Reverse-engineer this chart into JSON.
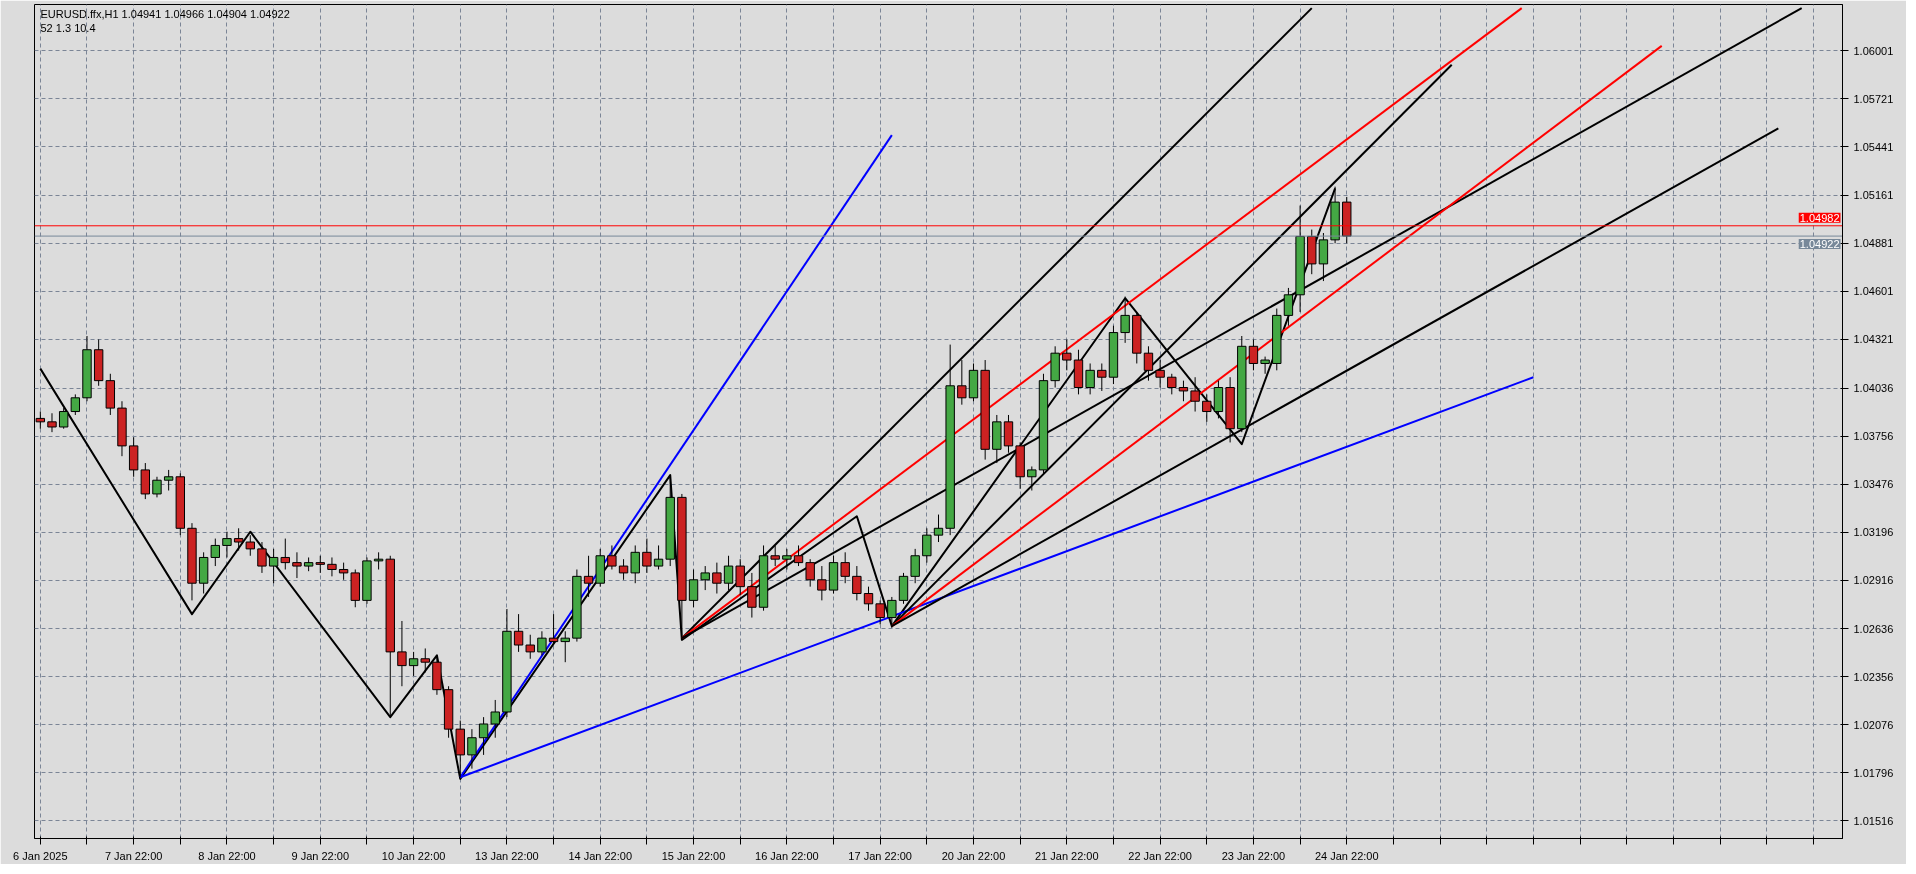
{
  "chart_data": {
    "type": "candlestick",
    "title": "EURUSD.ffx,H1  1.04941 1.04966 1.04904 1.04922",
    "subtitle": "52  1.3  10.4",
    "categories": [
      "6 Jan 2025",
      null,
      null,
      null,
      null,
      null,
      null,
      null,
      "7 Jan 22:00",
      null,
      null,
      null,
      null,
      null,
      null,
      null,
      "8 Jan 22:00",
      null,
      null,
      null,
      null,
      null,
      null,
      null,
      "9 Jan 22:00",
      null,
      null,
      null,
      null,
      null,
      null,
      null,
      "10 Jan 22:00",
      null,
      null,
      null,
      null,
      null,
      null,
      null,
      "13 Jan 22:00",
      null,
      null,
      null,
      null,
      null,
      null,
      null,
      "14 Jan 22:00",
      null,
      null,
      null,
      null,
      null,
      null,
      null,
      "15 Jan 22:00",
      null,
      null,
      null,
      null,
      null,
      null,
      null,
      "16 Jan 22:00",
      null,
      null,
      null,
      null,
      null,
      null,
      null,
      "17 Jan 22:00",
      null,
      null,
      null,
      null,
      null,
      null,
      null,
      "20 Jan 22:00",
      null,
      null,
      null,
      null,
      null,
      null,
      null,
      "21 Jan 22:00",
      null,
      null,
      null,
      null,
      null,
      null,
      null,
      "22 Jan 22:00",
      null,
      null,
      null,
      null,
      null,
      null,
      null,
      "23 Jan 22:00",
      null,
      null,
      null,
      null,
      null,
      null,
      null,
      "24 Jan 22:00",
      null,
      null,
      null,
      null,
      null,
      null,
      null,
      null,
      null,
      null,
      null,
      null,
      null,
      null,
      null,
      null,
      null,
      null,
      null,
      null,
      null,
      null,
      null,
      null,
      null,
      null,
      null,
      null,
      null,
      null,
      null,
      null,
      null,
      null,
      null,
      null,
      null,
      null,
      null,
      null,
      null,
      null
    ],
    "colors": [
      "#cc2222",
      "#cc2222",
      "#44a844",
      "#44a844",
      "#44a844",
      "#cc2222",
      "#cc2222",
      "#cc2222",
      "#cc2222",
      "#cc2222",
      "#44a844",
      "#44a844",
      "#cc2222",
      "#cc2222",
      "#44a844",
      "#44a844",
      "#44a844",
      "#cc2222",
      "#cc2222",
      "#cc2222",
      "#44a844",
      "#cc2222",
      "#cc2222",
      "#44a844",
      "#cc2222",
      "#cc2222",
      "#cc2222",
      "#cc2222",
      "#44a844",
      "#44a844",
      "#cc2222",
      "#cc2222",
      "#44a844",
      "#cc2222",
      "#cc2222",
      "#cc2222",
      "#cc2222",
      "#44a844",
      "#44a844",
      "#44a844",
      "#44a844",
      "#cc2222",
      "#cc2222",
      "#44a844",
      "#cc2222",
      "#44a844",
      "#44a844",
      "#cc2222",
      "#44a844",
      "#cc2222",
      "#cc2222",
      "#44a844",
      "#cc2222",
      "#44a844",
      "#44a844",
      "#cc2222",
      "#44a844",
      "#44a844",
      "#cc2222",
      "#44a844",
      "#cc2222",
      "#cc2222",
      "#44a844",
      "#cc2222",
      "#44a844",
      "#cc2222",
      "#cc2222",
      "#cc2222",
      "#44a844",
      "#cc2222",
      "#cc2222",
      "#cc2222",
      "#cc2222",
      "#44a844",
      "#44a844",
      "#44a844",
      "#44a844",
      "#44a844",
      "#44a844",
      "#cc2222",
      "#44a844",
      "#cc2222",
      "#44a844",
      "#cc2222",
      "#cc2222",
      "#44a844",
      "#44a844",
      "#44a844",
      "#cc2222",
      "#cc2222",
      "#44a844",
      "#cc2222",
      "#44a844",
      "#44a844",
      "#cc2222",
      "#cc2222",
      "#cc2222",
      "#cc2222",
      "#cc2222",
      "#cc2222",
      "#cc2222",
      "#44a844",
      "#cc2222",
      "#44a844",
      "#cc2222",
      "#44a844",
      "#44a844",
      "#44a844",
      "#44a844",
      "#cc2222",
      "#44a844",
      "#44a844",
      "#cc2222",
      null,
      null,
      null,
      null,
      null,
      null,
      null,
      null,
      null,
      null,
      null,
      null,
      null,
      null,
      null,
      null,
      null,
      null,
      null,
      null,
      null,
      null,
      null,
      null,
      null,
      null,
      null,
      null,
      null,
      null,
      null,
      null,
      null,
      null,
      null,
      null,
      null,
      null,
      null,
      null,
      null,
      null
    ],
    "ohlc": [
      [
        1.0386,
        1.039,
        1.038,
        1.0384
      ],
      [
        1.0384,
        1.0389,
        1.0378,
        1.0381
      ],
      [
        1.0381,
        1.0392,
        1.038,
        1.039
      ],
      [
        1.039,
        1.04,
        1.0388,
        1.0398
      ],
      [
        1.0398,
        1.0434,
        1.0396,
        1.0426
      ],
      [
        1.0426,
        1.0432,
        1.0405,
        1.0408
      ],
      [
        1.0408,
        1.0412,
        1.0388,
        1.0392
      ],
      [
        1.0392,
        1.0396,
        1.0364,
        1.037
      ],
      [
        1.037,
        1.0375,
        1.0352,
        1.0356
      ],
      [
        1.0356,
        1.036,
        1.0339,
        1.0342
      ],
      [
        1.0342,
        1.0352,
        1.034,
        1.035
      ],
      [
        1.035,
        1.0356,
        1.0344,
        1.0352
      ],
      [
        1.0352,
        1.0354,
        1.0318,
        1.0322
      ],
      [
        1.0322,
        1.0325,
        1.028,
        1.029
      ],
      [
        1.029,
        1.0308,
        1.0284,
        1.0305
      ],
      [
        1.0305,
        1.0316,
        1.03,
        1.0312
      ],
      [
        1.0312,
        1.032,
        1.0305,
        1.0316
      ],
      [
        1.0316,
        1.0322,
        1.0309,
        1.0314
      ],
      [
        1.0314,
        1.0318,
        1.0306,
        1.031
      ],
      [
        1.031,
        1.0314,
        1.0296,
        1.03
      ],
      [
        1.03,
        1.031,
        1.029,
        1.0305
      ],
      [
        1.0305,
        1.0316,
        1.0298,
        1.0302
      ],
      [
        1.0302,
        1.0308,
        1.0293,
        1.03
      ],
      [
        1.03,
        1.0305,
        1.0297,
        1.0302
      ],
      [
        1.0302,
        1.0306,
        1.0296,
        1.0301
      ],
      [
        1.0301,
        1.0305,
        1.0294,
        1.0298
      ],
      [
        1.0298,
        1.0302,
        1.0292,
        1.0296
      ],
      [
        1.0296,
        1.0298,
        1.0276,
        1.028
      ],
      [
        1.028,
        1.0305,
        1.0278,
        1.0303
      ],
      [
        1.0303,
        1.0308,
        1.0298,
        1.0304
      ],
      [
        1.0304,
        1.0306,
        1.0212,
        1.025
      ],
      [
        1.025,
        1.0268,
        1.023,
        1.0242
      ],
      [
        1.0242,
        1.025,
        1.0236,
        1.0246
      ],
      [
        1.0246,
        1.0252,
        1.0238,
        1.0244
      ],
      [
        1.0244,
        1.0248,
        1.0225,
        1.0228
      ],
      [
        1.0228,
        1.023,
        1.02,
        1.0205
      ],
      [
        1.0205,
        1.021,
        1.0177,
        1.019
      ],
      [
        1.019,
        1.0205,
        1.0182,
        1.02
      ],
      [
        1.02,
        1.0212,
        1.019,
        1.0208
      ],
      [
        1.0208,
        1.0222,
        1.02,
        1.0215
      ],
      [
        1.0215,
        1.0275,
        1.0212,
        1.0262
      ],
      [
        1.0262,
        1.0272,
        1.025,
        1.0254
      ],
      [
        1.0254,
        1.026,
        1.0246,
        1.025
      ],
      [
        1.025,
        1.0262,
        1.0248,
        1.0258
      ],
      [
        1.0258,
        1.0272,
        1.0255,
        1.0256
      ],
      [
        1.0256,
        1.0262,
        1.0244,
        1.0258
      ],
      [
        1.0258,
        1.0298,
        1.0256,
        1.0294
      ],
      [
        1.0294,
        1.0306,
        1.0282,
        1.029
      ],
      [
        1.029,
        1.031,
        1.0288,
        1.0306
      ],
      [
        1.0306,
        1.0312,
        1.0298,
        1.03
      ],
      [
        1.03,
        1.0304,
        1.0292,
        1.0296
      ],
      [
        1.0296,
        1.0312,
        1.029,
        1.0308
      ],
      [
        1.0308,
        1.0316,
        1.0296,
        1.03
      ],
      [
        1.03,
        1.0312,
        1.0298,
        1.0304
      ],
      [
        1.0304,
        1.0353,
        1.03,
        1.034
      ],
      [
        1.034,
        1.0342,
        1.0257,
        1.028
      ],
      [
        1.028,
        1.0298,
        1.0276,
        1.0292
      ],
      [
        1.0292,
        1.03,
        1.0286,
        1.0296
      ],
      [
        1.0296,
        1.0302,
        1.0284,
        1.029
      ],
      [
        1.029,
        1.0306,
        1.0286,
        1.03
      ],
      [
        1.03,
        1.0304,
        1.0283,
        1.0288
      ],
      [
        1.0288,
        1.0296,
        1.027,
        1.0276
      ],
      [
        1.0276,
        1.0312,
        1.0274,
        1.0306
      ],
      [
        1.0306,
        1.0312,
        1.03,
        1.0304
      ],
      [
        1.0304,
        1.031,
        1.0298,
        1.0306
      ],
      [
        1.0306,
        1.0312,
        1.03,
        1.0302
      ],
      [
        1.0302,
        1.0304,
        1.0288,
        1.0292
      ],
      [
        1.0292,
        1.03,
        1.028,
        1.0286
      ],
      [
        1.0286,
        1.0306,
        1.0284,
        1.0302
      ],
      [
        1.0302,
        1.0308,
        1.029,
        1.0294
      ],
      [
        1.0294,
        1.03,
        1.028,
        1.0284
      ],
      [
        1.0284,
        1.0288,
        1.0274,
        1.0278
      ],
      [
        1.0278,
        1.028,
        1.0266,
        1.027
      ],
      [
        1.027,
        1.0282,
        1.0264,
        1.028
      ],
      [
        1.028,
        1.0296,
        1.0278,
        1.0294
      ],
      [
        1.0294,
        1.031,
        1.029,
        1.0306
      ],
      [
        1.0306,
        1.0322,
        1.0302,
        1.0318
      ],
      [
        1.0318,
        1.033,
        1.0314,
        1.0322
      ],
      [
        1.0322,
        1.0429,
        1.0318,
        1.0405
      ],
      [
        1.0405,
        1.042,
        1.0394,
        1.0398
      ],
      [
        1.0398,
        1.0418,
        1.0396,
        1.0414
      ],
      [
        1.0414,
        1.042,
        1.0362,
        1.0368
      ],
      [
        1.0368,
        1.0388,
        1.036,
        1.0384
      ],
      [
        1.0384,
        1.0388,
        1.0366,
        1.037
      ],
      [
        1.037,
        1.0372,
        1.0345,
        1.0352
      ],
      [
        1.0352,
        1.0358,
        1.0344,
        1.0356
      ],
      [
        1.0356,
        1.0412,
        1.0354,
        1.0408
      ],
      [
        1.0408,
        1.0428,
        1.0404,
        1.0424
      ],
      [
        1.0424,
        1.0432,
        1.0414,
        1.042
      ],
      [
        1.042,
        1.0426,
        1.04,
        1.0404
      ],
      [
        1.0404,
        1.0418,
        1.04,
        1.0414
      ],
      [
        1.0414,
        1.0418,
        1.0402,
        1.041
      ],
      [
        1.041,
        1.044,
        1.0406,
        1.0436
      ],
      [
        1.0436,
        1.0457,
        1.043,
        1.0446
      ],
      [
        1.0446,
        1.0448,
        1.0418,
        1.0424
      ],
      [
        1.0424,
        1.0428,
        1.0408,
        1.0414
      ],
      [
        1.0414,
        1.042,
        1.0404,
        1.041
      ],
      [
        1.041,
        1.0412,
        1.04,
        1.0404
      ],
      [
        1.0404,
        1.0408,
        1.0396,
        1.0402
      ],
      [
        1.0402,
        1.041,
        1.039,
        1.0396
      ],
      [
        1.0396,
        1.04,
        1.0384,
        1.039
      ],
      [
        1.039,
        1.0408,
        1.0386,
        1.0404
      ],
      [
        1.0404,
        1.041,
        1.0372,
        1.038
      ],
      [
        1.038,
        1.0434,
        1.0378,
        1.0428
      ],
      [
        1.0428,
        1.0432,
        1.0414,
        1.0418
      ],
      [
        1.0418,
        1.0422,
        1.0412,
        1.042
      ],
      [
        1.0418,
        1.045,
        1.0414,
        1.0446
      ],
      [
        1.0446,
        1.0462,
        1.044,
        1.0458
      ],
      [
        1.0458,
        1.051,
        1.0448,
        1.0492
      ],
      [
        1.0492,
        1.0496,
        1.047,
        1.0476
      ],
      [
        1.0476,
        1.0494,
        1.0466,
        1.049
      ],
      [
        1.049,
        1.0521,
        1.0488,
        1.0512
      ],
      [
        1.0512,
        1.0515,
        1.0488,
        1.04922
      ],
      null,
      null,
      null,
      null,
      null,
      null,
      null,
      null,
      null,
      null,
      null,
      null,
      null,
      null,
      null,
      null,
      null,
      null,
      null,
      null,
      null,
      null,
      null,
      null,
      null,
      null,
      null,
      null,
      null,
      null,
      null,
      null,
      null,
      null,
      null,
      null,
      null,
      null,
      null,
      null,
      null,
      null
    ],
    "series": [
      {
        "type": "line",
        "color": "#000000",
        "values": [
          1.0415,
          null,
          null,
          null,
          null,
          null,
          null,
          null,
          null,
          null,
          null,
          null,
          null,
          1.0272,
          null,
          null,
          null,
          null,
          1.032,
          null,
          null,
          null,
          null,
          null,
          null,
          null,
          null,
          null,
          null,
          null,
          1.0212,
          null,
          null,
          null,
          1.0248,
          null,
          1.0176,
          null,
          null,
          null,
          null,
          null,
          null,
          null,
          null,
          null,
          null,
          null,
          null,
          null,
          null,
          null,
          null,
          null,
          1.0353,
          1.0257,
          null,
          null,
          null,
          null,
          null,
          null,
          null,
          null,
          null,
          null,
          null,
          null,
          null,
          null,
          1.0329,
          null,
          null,
          1.0265,
          null,
          null,
          null,
          null,
          null,
          null,
          null,
          null,
          null,
          null,
          null,
          null,
          null,
          null,
          null,
          null,
          null,
          null,
          null,
          1.0456,
          null,
          null,
          null,
          null,
          null,
          null,
          null,
          null,
          null,
          1.0371,
          null,
          null,
          null,
          null,
          null,
          null,
          null,
          1.052,
          null,
          null,
          null,
          null,
          null,
          null,
          null,
          null,
          null,
          null,
          null,
          null,
          null,
          null,
          null,
          null,
          null,
          null,
          null,
          null,
          null,
          null,
          null,
          null,
          null,
          null,
          null,
          null,
          null,
          null,
          null,
          null,
          null,
          null,
          null,
          null,
          null,
          null,
          null,
          null,
          null,
          null,
          null
        ]
      },
      {
        "type": "line",
        "color": "#0000ff",
        "values": [
          null,
          null,
          null,
          null,
          null,
          null,
          null,
          null,
          null,
          null,
          null,
          null,
          null,
          null,
          null,
          null,
          null,
          null,
          null,
          null,
          null,
          null,
          null,
          null,
          null,
          null,
          null,
          null,
          null,
          null,
          null,
          null,
          null,
          null,
          null,
          null,
          1.0177,
          null,
          null,
          null,
          null,
          null,
          null,
          null,
          null,
          null,
          null,
          null,
          null,
          null,
          null,
          null,
          null,
          null,
          null,
          null,
          null,
          null,
          null,
          null,
          null,
          null,
          null,
          null,
          null,
          null,
          null,
          null,
          null,
          null,
          null,
          null,
          null,
          1.0551,
          null,
          null,
          null,
          null,
          null,
          null,
          null,
          null,
          null,
          null,
          null,
          null,
          null,
          null,
          null,
          null,
          null,
          null,
          null,
          null,
          null,
          null,
          null,
          null,
          null,
          null,
          null,
          null,
          null,
          null,
          null,
          null,
          null,
          null,
          null,
          null,
          null,
          null,
          null,
          null,
          null,
          null,
          null,
          null,
          null,
          null,
          null,
          null,
          null,
          null,
          null,
          null,
          null,
          null,
          null,
          null,
          null,
          null,
          null,
          null,
          null,
          null,
          null,
          null,
          null,
          null,
          null,
          null,
          null,
          null,
          null,
          null,
          null,
          null,
          null,
          null,
          null,
          null,
          null,
          null,
          null
        ]
      },
      {
        "type": "line",
        "color": "#0000ff",
        "values": [
          null,
          null,
          null,
          null,
          null,
          null,
          null,
          null,
          null,
          null,
          null,
          null,
          null,
          null,
          null,
          null,
          null,
          null,
          null,
          null,
          null,
          null,
          null,
          null,
          null,
          null,
          null,
          null,
          null,
          null,
          null,
          null,
          null,
          null,
          null,
          null,
          1.0177,
          null,
          null,
          null,
          null,
          null,
          null,
          null,
          null,
          null,
          null,
          null,
          null,
          null,
          null,
          null,
          null,
          null,
          null,
          null,
          null,
          null,
          null,
          null,
          null,
          null,
          null,
          null,
          null,
          null,
          null,
          null,
          null,
          null,
          null,
          null,
          null,
          null,
          null,
          null,
          null,
          null,
          null,
          null,
          null,
          null,
          null,
          null,
          null,
          null,
          null,
          null,
          null,
          null,
          null,
          null,
          null,
          null,
          null,
          null,
          null,
          null,
          null,
          null,
          null,
          null,
          null,
          null,
          null,
          null,
          null,
          null,
          null,
          null,
          null,
          null,
          null,
          null,
          null,
          null,
          null,
          null,
          null,
          null,
          null,
          null,
          null,
          null,
          null,
          null,
          null,
          null,
          1.041,
          null,
          null,
          null,
          null,
          null,
          null,
          null,
          null,
          null,
          null,
          null,
          null,
          null,
          null,
          null,
          null,
          null,
          null,
          null,
          null,
          null,
          null,
          null,
          null,
          null,
          null
        ]
      },
      {
        "type": "line",
        "color": "#000000",
        "values": [
          null,
          null,
          null,
          null,
          null,
          null,
          null,
          null,
          null,
          null,
          null,
          null,
          null,
          null,
          null,
          null,
          null,
          null,
          null,
          null,
          null,
          null,
          null,
          null,
          null,
          null,
          null,
          null,
          null,
          null,
          null,
          null,
          null,
          null,
          null,
          null,
          null,
          null,
          null,
          null,
          null,
          null,
          null,
          null,
          null,
          null,
          null,
          null,
          null,
          null,
          null,
          null,
          null,
          null,
          null,
          1.0258,
          null,
          null,
          null,
          null,
          null,
          null,
          null,
          null,
          null,
          null,
          null,
          null,
          null,
          null,
          null,
          null,
          null,
          null,
          null,
          null,
          null,
          null,
          null,
          null,
          null,
          null,
          null,
          null,
          null,
          null,
          null,
          null,
          null,
          null,
          null,
          null,
          null,
          null,
          null,
          null,
          null,
          null,
          null,
          null,
          null,
          null,
          null,
          null,
          null,
          null,
          null,
          null,
          null,
          1.0625,
          null,
          null,
          null,
          null,
          null,
          null,
          null,
          null,
          null,
          null,
          null,
          null,
          null,
          null,
          null,
          null,
          null,
          null,
          null,
          null,
          null,
          null,
          null,
          null,
          null,
          null,
          null,
          null,
          null,
          null,
          null,
          null,
          null,
          null,
          null,
          null,
          null,
          null,
          null,
          null,
          null,
          null,
          null,
          null,
          null
        ]
      },
      {
        "type": "line",
        "color": "#ff0000",
        "values": [
          null,
          null,
          null,
          null,
          null,
          null,
          null,
          null,
          null,
          null,
          null,
          null,
          null,
          null,
          null,
          null,
          null,
          null,
          null,
          null,
          null,
          null,
          null,
          null,
          null,
          null,
          null,
          null,
          null,
          null,
          null,
          null,
          null,
          null,
          null,
          null,
          null,
          null,
          null,
          null,
          null,
          null,
          null,
          null,
          null,
          null,
          null,
          null,
          null,
          null,
          null,
          null,
          null,
          null,
          null,
          1.0258,
          null,
          null,
          null,
          null,
          null,
          null,
          null,
          null,
          null,
          null,
          null,
          null,
          null,
          null,
          null,
          null,
          null,
          null,
          null,
          null,
          null,
          null,
          null,
          null,
          null,
          null,
          null,
          null,
          null,
          null,
          null,
          null,
          null,
          null,
          null,
          null,
          null,
          null,
          null,
          null,
          null,
          null,
          null,
          null,
          null,
          null,
          null,
          null,
          null,
          null,
          null,
          null,
          null,
          null,
          null,
          null,
          null,
          null,
          null,
          null,
          null,
          null,
          null,
          null,
          null,
          null,
          null,
          null,
          null,
          null,
          null,
          1.0625,
          null,
          null,
          null,
          null,
          null,
          null,
          null,
          null,
          null,
          null,
          null,
          null,
          null,
          null,
          null,
          null,
          null,
          null,
          null,
          null,
          null,
          null,
          null,
          null,
          null,
          null,
          null
        ]
      },
      {
        "type": "line",
        "color": "#000000",
        "values": [
          null,
          null,
          null,
          null,
          null,
          null,
          null,
          null,
          null,
          null,
          null,
          null,
          null,
          null,
          null,
          null,
          null,
          null,
          null,
          null,
          null,
          null,
          null,
          null,
          null,
          null,
          null,
          null,
          null,
          null,
          null,
          null,
          null,
          null,
          null,
          null,
          null,
          null,
          null,
          null,
          null,
          null,
          null,
          null,
          null,
          null,
          null,
          null,
          null,
          null,
          null,
          null,
          null,
          null,
          null,
          1.0258,
          null,
          null,
          null,
          null,
          null,
          null,
          null,
          null,
          null,
          null,
          null,
          null,
          null,
          null,
          null,
          null,
          null,
          null,
          null,
          null,
          null,
          null,
          null,
          null,
          null,
          null,
          null,
          null,
          null,
          null,
          null,
          null,
          null,
          null,
          null,
          null,
          null,
          null,
          null,
          null,
          null,
          null,
          null,
          null,
          null,
          null,
          null,
          null,
          null,
          null,
          null,
          null,
          null,
          null,
          null,
          null,
          null,
          null,
          null,
          null,
          null,
          null,
          null,
          null,
          null,
          null,
          null,
          null,
          null,
          null,
          null,
          null,
          null,
          null,
          null,
          null,
          null,
          null,
          null,
          null,
          null,
          null,
          null,
          null,
          null,
          null,
          null,
          null,
          null,
          null,
          null,
          null,
          null,
          null,
          null,
          1.0625,
          null,
          null,
          null
        ]
      },
      {
        "type": "line",
        "color": "#000000",
        "values": [
          null,
          null,
          null,
          null,
          null,
          null,
          null,
          null,
          null,
          null,
          null,
          null,
          null,
          null,
          null,
          null,
          null,
          null,
          null,
          null,
          null,
          null,
          null,
          null,
          null,
          null,
          null,
          null,
          null,
          null,
          null,
          null,
          null,
          null,
          null,
          null,
          null,
          null,
          null,
          null,
          null,
          null,
          null,
          null,
          null,
          null,
          null,
          null,
          null,
          null,
          null,
          null,
          null,
          null,
          null,
          null,
          null,
          null,
          null,
          null,
          null,
          null,
          null,
          null,
          null,
          null,
          null,
          null,
          null,
          null,
          null,
          null,
          null,
          1.0265,
          null,
          null,
          null,
          null,
          null,
          null,
          null,
          null,
          null,
          null,
          null,
          null,
          null,
          null,
          null,
          null,
          null,
          null,
          null,
          null,
          null,
          null,
          null,
          null,
          null,
          null,
          null,
          null,
          null,
          null,
          null,
          null,
          null,
          null,
          null,
          null,
          null,
          null,
          null,
          null,
          null,
          null,
          null,
          null,
          null,
          null,
          null,
          1.0592,
          null,
          null,
          null,
          null,
          null,
          null,
          null,
          null,
          null,
          null,
          null,
          null,
          null,
          null,
          null,
          null,
          null,
          null,
          null,
          null,
          null,
          null,
          null,
          null,
          null,
          null,
          null,
          null,
          null,
          null,
          null,
          null,
          null
        ]
      },
      {
        "type": "line",
        "color": "#ff0000",
        "values": [
          null,
          null,
          null,
          null,
          null,
          null,
          null,
          null,
          null,
          null,
          null,
          null,
          null,
          null,
          null,
          null,
          null,
          null,
          null,
          null,
          null,
          null,
          null,
          null,
          null,
          null,
          null,
          null,
          null,
          null,
          null,
          null,
          null,
          null,
          null,
          null,
          null,
          null,
          null,
          null,
          null,
          null,
          null,
          null,
          null,
          null,
          null,
          null,
          null,
          null,
          null,
          null,
          null,
          null,
          null,
          null,
          null,
          null,
          null,
          null,
          null,
          null,
          null,
          null,
          null,
          null,
          null,
          null,
          null,
          null,
          null,
          null,
          null,
          1.0265,
          null,
          null,
          null,
          null,
          null,
          null,
          null,
          null,
          null,
          null,
          null,
          null,
          null,
          null,
          null,
          null,
          null,
          null,
          null,
          null,
          null,
          null,
          null,
          null,
          null,
          null,
          null,
          null,
          null,
          null,
          null,
          null,
          null,
          null,
          null,
          null,
          null,
          null,
          null,
          null,
          null,
          null,
          null,
          null,
          null,
          null,
          null,
          null,
          null,
          null,
          null,
          null,
          null,
          null,
          null,
          null,
          null,
          null,
          null,
          null,
          null,
          null,
          null,
          null,
          null,
          1.0603,
          null,
          null,
          null,
          null,
          null,
          null,
          null,
          null,
          null,
          null,
          null,
          null,
          null,
          null,
          null
        ]
      },
      {
        "type": "line",
        "color": "#000000",
        "values": [
          null,
          null,
          null,
          null,
          null,
          null,
          null,
          null,
          null,
          null,
          null,
          null,
          null,
          null,
          null,
          null,
          null,
          null,
          null,
          null,
          null,
          null,
          null,
          null,
          null,
          null,
          null,
          null,
          null,
          null,
          null,
          null,
          null,
          null,
          null,
          null,
          null,
          null,
          null,
          null,
          null,
          null,
          null,
          null,
          null,
          null,
          null,
          null,
          null,
          null,
          null,
          null,
          null,
          null,
          null,
          null,
          null,
          null,
          null,
          null,
          null,
          null,
          null,
          null,
          null,
          null,
          null,
          null,
          null,
          null,
          null,
          null,
          null,
          1.0265,
          null,
          null,
          null,
          null,
          null,
          null,
          null,
          null,
          null,
          null,
          null,
          null,
          null,
          null,
          null,
          null,
          null,
          null,
          null,
          null,
          null,
          null,
          null,
          null,
          null,
          null,
          null,
          null,
          null,
          null,
          null,
          null,
          null,
          null,
          null,
          null,
          null,
          null,
          null,
          null,
          null,
          null,
          null,
          null,
          null,
          null,
          null,
          null,
          null,
          null,
          null,
          null,
          null,
          null,
          null,
          null,
          null,
          null,
          null,
          null,
          null,
          null,
          null,
          null,
          null,
          null,
          null,
          null,
          null,
          null,
          null,
          null,
          null,
          null,
          null,
          1.0555,
          null,
          null,
          null,
          null,
          null
        ]
      }
    ],
    "ref_lines": [
      {
        "axis": "y",
        "value": 1.04982,
        "label": "1.04982",
        "color": "#ff0000"
      },
      {
        "axis": "y",
        "value": 1.04922,
        "label": "1.04922",
        "color": "#778899"
      }
    ],
    "ylim": [
      1.01413,
      1.06271
    ],
    "yticks": [
      1.01516,
      1.01796,
      1.02076,
      1.02356,
      1.02636,
      1.02916,
      1.03196,
      1.03476,
      1.03756,
      1.04036,
      1.04321,
      1.04601,
      1.04881,
      1.05161,
      1.05441,
      1.05721,
      1.06001
    ],
    "grid": true
  }
}
